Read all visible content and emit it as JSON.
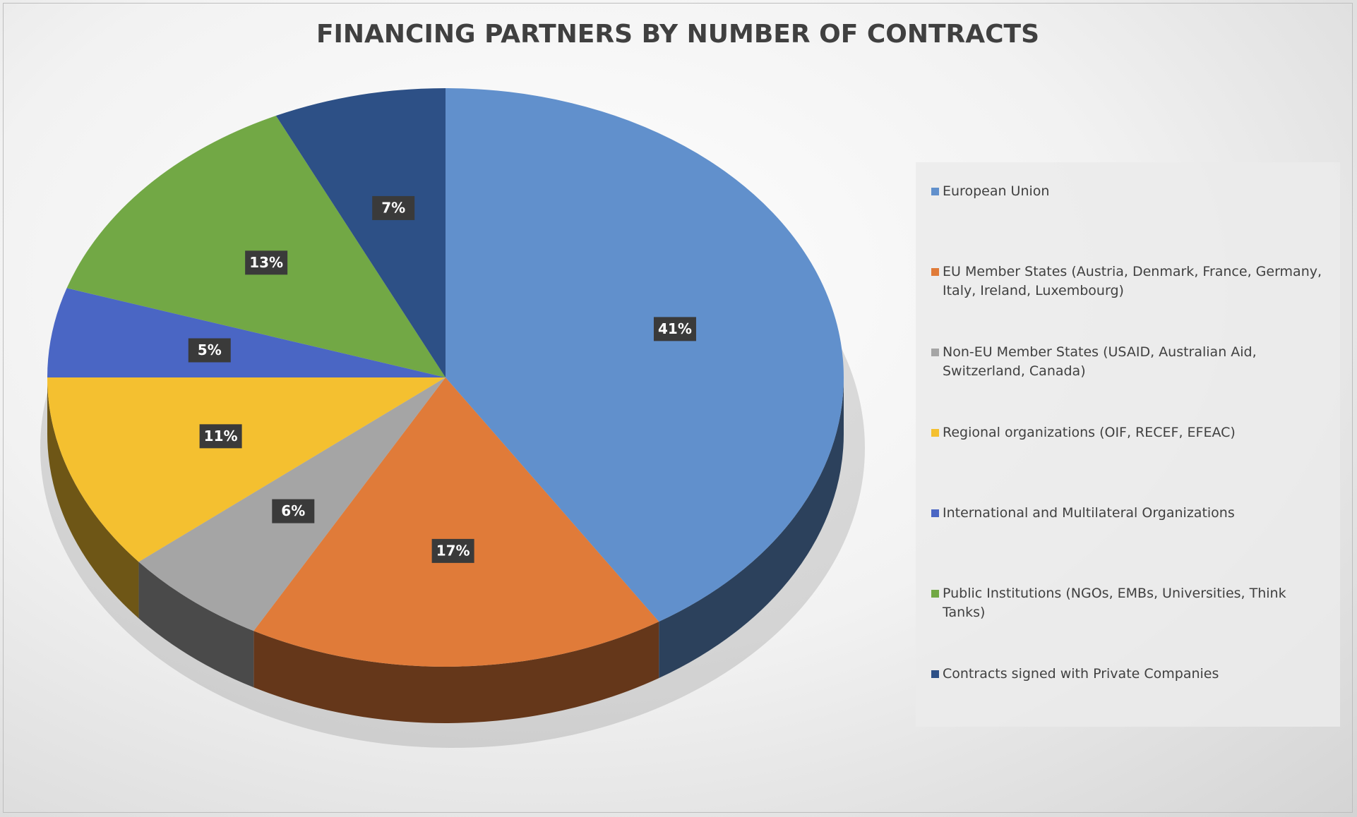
{
  "chart_data": {
    "type": "pie3d",
    "title": "FINANCING PARTNERS BY NUMBER OF CONTRACTS",
    "series": [
      {
        "name": "European Union",
        "color": "#6190cc",
        "values": [
          41
        ],
        "value_labels": [
          "41%"
        ]
      },
      {
        "name": "EU Member States (Austria, Denmark, France, Germany, Italy, Ireland, Luxembourg)",
        "color": "#e07b39",
        "values": [
          17
        ],
        "value_labels": [
          "17%"
        ]
      },
      {
        "name": "Non-EU Member States  (USAID, Australian Aid, Switzerland, Canada)",
        "color": "#a5a5a5",
        "values": [
          6
        ],
        "value_labels": [
          "6%"
        ]
      },
      {
        "name": "Regional organizations (OIF, RECEF, EFEAC)",
        "color": "#f4c030",
        "values": [
          11
        ],
        "value_labels": [
          "11%"
        ]
      },
      {
        "name": "International and Multilateral Organizations",
        "color": "#4a66c4",
        "values": [
          5
        ],
        "value_labels": [
          "5%"
        ]
      },
      {
        "name": "Public Institutions (NGOs, EMBs, Universities, Think Tanks)",
        "color": "#72a845",
        "values": [
          13
        ],
        "value_labels": [
          "13%"
        ]
      },
      {
        "name": "Contracts signed with Private Companies",
        "color": "#2d5086",
        "values": [
          7
        ],
        "value_labels": [
          "7%"
        ]
      }
    ],
    "legend": "right"
  }
}
